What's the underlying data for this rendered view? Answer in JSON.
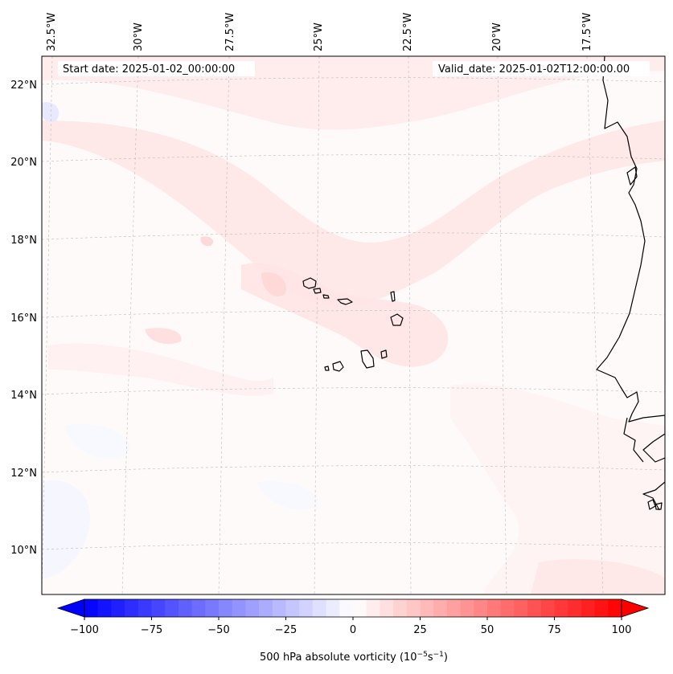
{
  "map": {
    "start_date": "Start date: 2025-01-02_00:00:00",
    "valid_date": "Valid_date: 2025-01-02T12:00:00.00",
    "longitude_labels": [
      "32.5°W",
      "30°W",
      "27.5°W",
      "25°W",
      "22.5°W",
      "20°W",
      "17.5°W"
    ],
    "latitude_labels": [
      "22°N",
      "20°N",
      "18°N",
      "16°N",
      "14°N",
      "12°N",
      "10°N"
    ],
    "gridlines": true,
    "coastline_color": "#000000",
    "field_colors": {
      "positive": "#ff0000",
      "negative": "#0000ff",
      "neutral": "#ffffff"
    }
  },
  "colorbar": {
    "label": "500 hPa absolute vorticity (10",
    "label_exp1": "−5",
    "label_mid": "s",
    "label_exp2": "−1",
    "label_end": ")",
    "range": [
      -100,
      100
    ],
    "extend": "both",
    "ticks": [
      {
        "value": -100,
        "label": "−100"
      },
      {
        "value": -75,
        "label": "−75"
      },
      {
        "value": -50,
        "label": "−50"
      },
      {
        "value": -25,
        "label": "−25"
      },
      {
        "value": 0,
        "label": "0"
      },
      {
        "value": 25,
        "label": "25"
      },
      {
        "value": 50,
        "label": "50"
      },
      {
        "value": 75,
        "label": "75"
      },
      {
        "value": 100,
        "label": "100"
      }
    ]
  }
}
